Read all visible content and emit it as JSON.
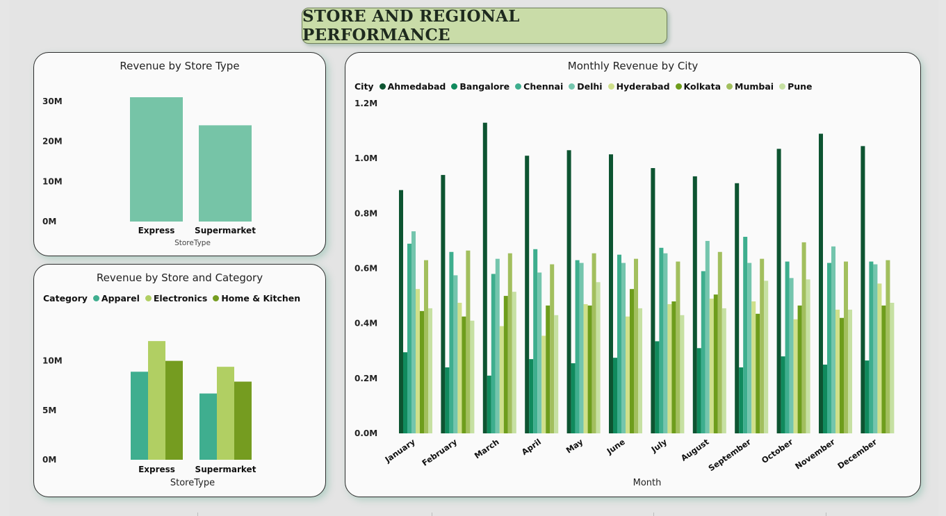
{
  "page": {
    "title": "STORE AND REGIONAL PERFORMANCE"
  },
  "chart_data": [
    {
      "id": "store_type",
      "type": "bar",
      "title": "Revenue by Store Type",
      "xlabel": "StoreType",
      "ylabel": "",
      "categories": [
        "Express",
        "Supermarket"
      ],
      "values": [
        31000000,
        24000000
      ],
      "ylim": [
        0,
        31000000
      ],
      "yticks": [
        0,
        10000000,
        20000000,
        30000000
      ],
      "ytick_labels": [
        "0M",
        "10M",
        "20M",
        "30M"
      ],
      "color": "#76c4a7",
      "grid": false
    },
    {
      "id": "store_category",
      "type": "bar",
      "title": "Revenue by Store and Category",
      "xlabel": "StoreType",
      "ylabel": "",
      "legend_title": "Category",
      "categories": [
        "Express",
        "Supermarket"
      ],
      "series": [
        {
          "name": "Apparel",
          "color": "#3fae8f",
          "values": [
            8900000,
            6700000
          ]
        },
        {
          "name": "Electronics",
          "color": "#b1cf63",
          "values": [
            12000000,
            9400000
          ]
        },
        {
          "name": "Home & Kitchen",
          "color": "#759c20",
          "values": [
            10000000,
            7900000
          ]
        }
      ],
      "ylim": [
        0,
        12500000
      ],
      "yticks": [
        0,
        5000000,
        10000000
      ],
      "ytick_labels": [
        "0M",
        "5M",
        "10M"
      ],
      "grid": false
    },
    {
      "id": "monthly_city",
      "type": "bar",
      "title": "Monthly Revenue by City",
      "xlabel": "Month",
      "ylabel": "",
      "legend_title": "City",
      "categories": [
        "January",
        "February",
        "March",
        "April",
        "May",
        "June",
        "July",
        "August",
        "September",
        "October",
        "November",
        "December"
      ],
      "series": [
        {
          "name": "Ahmedabad",
          "color": "#0d5431",
          "values": [
            0.885,
            0.94,
            1.13,
            1.01,
            1.03,
            1.015,
            0.965,
            0.935,
            0.91,
            1.035,
            1.09,
            1.045
          ]
        },
        {
          "name": "Bangalore",
          "color": "#108a5d",
          "values": [
            0.295,
            0.24,
            0.21,
            0.27,
            0.255,
            0.275,
            0.335,
            0.31,
            0.24,
            0.28,
            0.25,
            0.265
          ]
        },
        {
          "name": "Chennai",
          "color": "#3eae8e",
          "values": [
            0.69,
            0.66,
            0.58,
            0.67,
            0.63,
            0.65,
            0.675,
            0.59,
            0.715,
            0.625,
            0.62,
            0.625
          ]
        },
        {
          "name": "Delhi",
          "color": "#74c5ad",
          "values": [
            0.735,
            0.575,
            0.635,
            0.585,
            0.62,
            0.62,
            0.655,
            0.7,
            0.62,
            0.565,
            0.68,
            0.615
          ]
        },
        {
          "name": "Hyderabad",
          "color": "#cfe08b",
          "values": [
            0.525,
            0.475,
            0.39,
            0.355,
            0.47,
            0.425,
            0.47,
            0.49,
            0.48,
            0.415,
            0.45,
            0.545
          ]
        },
        {
          "name": "Kolkata",
          "color": "#6e9d1c",
          "values": [
            0.445,
            0.425,
            0.5,
            0.465,
            0.465,
            0.525,
            0.48,
            0.505,
            0.435,
            0.465,
            0.42,
            0.465
          ]
        },
        {
          "name": "Mumbai",
          "color": "#a2bf5e",
          "values": [
            0.63,
            0.665,
            0.655,
            0.615,
            0.655,
            0.635,
            0.625,
            0.66,
            0.635,
            0.695,
            0.625,
            0.63
          ]
        },
        {
          "name": "Pune",
          "color": "#c6e0a2",
          "values": [
            0.455,
            0.41,
            0.515,
            0.43,
            0.55,
            0.455,
            0.43,
            0.455,
            0.555,
            0.56,
            0.45,
            0.475
          ]
        }
      ],
      "ylim": [
        0,
        1.2
      ],
      "yticks": [
        0,
        0.2,
        0.4,
        0.6,
        0.8,
        1.0,
        1.2
      ],
      "ytick_labels": [
        "0.0M",
        "0.2M",
        "0.4M",
        "0.6M",
        "0.8M",
        "1.0M",
        "1.2M"
      ],
      "units": "millions",
      "grid": false
    }
  ]
}
